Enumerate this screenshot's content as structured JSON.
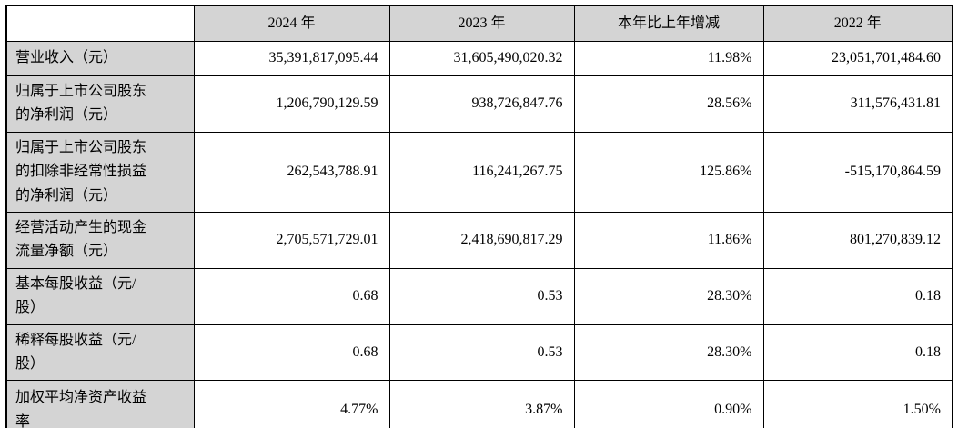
{
  "table": {
    "colors": {
      "header_bg": "#d4d4d4",
      "border": "#000000",
      "cell_bg": "#ffffff"
    },
    "headers": {
      "corner": "",
      "y2024": "2024 年",
      "y2023": "2023 年",
      "yoy": "本年比上年增减",
      "y2022": "2022 年"
    },
    "rows": [
      {
        "label": "营业收入（元）",
        "values": [
          "35,391,817,095.44",
          "31,605,490,020.32",
          "11.98%",
          "23,051,701,484.60"
        ]
      },
      {
        "label": "归属于上市公司股东的净利润（元）",
        "values": [
          "1,206,790,129.59",
          "938,726,847.76",
          "28.56%",
          "311,576,431.81"
        ]
      },
      {
        "label": "归属于上市公司股东的扣除非经常性损益的净利润（元）",
        "values": [
          "262,543,788.91",
          "116,241,267.75",
          "125.86%",
          "-515,170,864.59"
        ]
      },
      {
        "label": "经营活动产生的现金流量净额（元）",
        "values": [
          "2,705,571,729.01",
          "2,418,690,817.29",
          "11.86%",
          "801,270,839.12"
        ]
      },
      {
        "label": "基本每股收益（元/股）",
        "values": [
          "0.68",
          "0.53",
          "28.30%",
          "0.18"
        ]
      },
      {
        "label": "稀释每股收益（元/股）",
        "values": [
          "0.68",
          "0.53",
          "28.30%",
          "0.18"
        ]
      },
      {
        "label": "加权平均净资产收益率",
        "values": [
          "4.77%",
          "3.87%",
          "0.90%",
          "1.50%"
        ]
      }
    ]
  }
}
